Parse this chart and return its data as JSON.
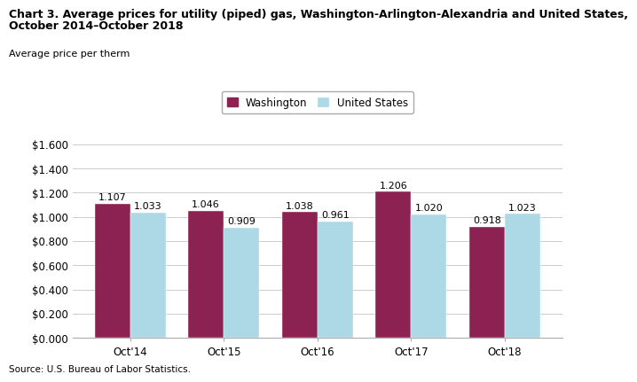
{
  "title_line1": "Chart 3. Average prices for utility (piped) gas, Washington-Arlington-Alexandria and United States,",
  "title_line2": "October 2014–October 2018",
  "ylabel": "Average price per therm",
  "source": "Source: U.S. Bureau of Labor Statistics.",
  "categories": [
    "Oct'14",
    "Oct'15",
    "Oct'16",
    "Oct'17",
    "Oct'18"
  ],
  "washington_values": [
    1.107,
    1.046,
    1.038,
    1.206,
    0.918
  ],
  "us_values": [
    1.033,
    0.909,
    0.961,
    1.02,
    1.023
  ],
  "washington_color": "#8B2252",
  "us_color": "#ADD8E6",
  "ylim": [
    0,
    1.6
  ],
  "yticks": [
    0.0,
    0.2,
    0.4,
    0.6,
    0.8,
    1.0,
    1.2,
    1.4,
    1.6
  ],
  "ytick_labels": [
    "$0.000",
    "$0.200",
    "$0.400",
    "$0.600",
    "$0.800",
    "$1.000",
    "$1.200",
    "$1.400",
    "$1.600"
  ],
  "legend_washington": "Washington",
  "legend_us": "United States",
  "bar_width": 0.38,
  "title_fontsize": 9.0,
  "label_fontsize": 8.0,
  "tick_fontsize": 8.5,
  "annotation_fontsize": 8.0,
  "legend_fontsize": 8.5
}
